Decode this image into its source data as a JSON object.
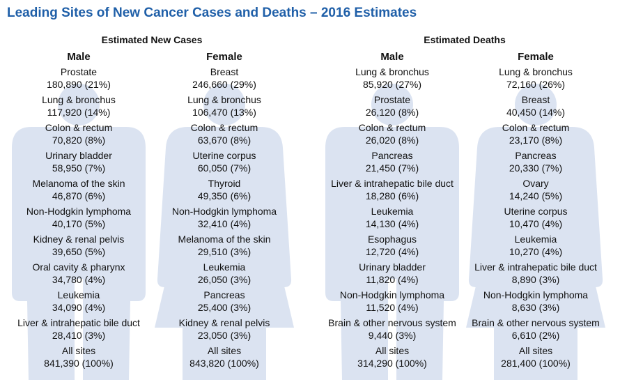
{
  "header": {
    "title": "Leading Sites of New Cancer Cases and Deaths – 2016 Estimates"
  },
  "sections": [
    {
      "title": "Estimated New Cases",
      "columns": [
        {
          "heading": "Male",
          "entries": [
            {
              "site": "Prostate",
              "stat": "180,890 (21%)"
            },
            {
              "site": "Lung & bronchus",
              "stat": "117,920 (14%)"
            },
            {
              "site": "Colon & rectum",
              "stat": "70,820 (8%)"
            },
            {
              "site": "Urinary bladder",
              "stat": "58,950 (7%)"
            },
            {
              "site": "Melanoma of the skin",
              "stat": "46,870 (6%)"
            },
            {
              "site": "Non-Hodgkin lymphoma",
              "stat": "40,170 (5%)"
            },
            {
              "site": "Kidney & renal pelvis",
              "stat": "39,650 (5%)"
            },
            {
              "site": "Oral cavity & pharynx",
              "stat": "34,780 (4%)"
            },
            {
              "site": "Leukemia",
              "stat": "34,090 (4%)"
            },
            {
              "site": "Liver & intrahepatic bile duct",
              "stat": "28,410 (3%)"
            },
            {
              "site": "All sites",
              "stat": "841,390 (100%)"
            }
          ]
        },
        {
          "heading": "Female",
          "entries": [
            {
              "site": "Breast",
              "stat": "246,660 (29%)"
            },
            {
              "site": "Lung & bronchus",
              "stat": "106,470 (13%)"
            },
            {
              "site": "Colon & rectum",
              "stat": "63,670 (8%)"
            },
            {
              "site": "Uterine corpus",
              "stat": "60,050 (7%)"
            },
            {
              "site": "Thyroid",
              "stat": "49,350 (6%)"
            },
            {
              "site": "Non-Hodgkin lymphoma",
              "stat": "32,410 (4%)"
            },
            {
              "site": "Melanoma of the skin",
              "stat": "29,510 (3%)"
            },
            {
              "site": "Leukemia",
              "stat": "26,050 (3%)"
            },
            {
              "site": "Pancreas",
              "stat": "25,400 (3%)"
            },
            {
              "site": "Kidney & renal pelvis",
              "stat": "23,050 (3%)"
            },
            {
              "site": "All sites",
              "stat": "843,820 (100%)"
            }
          ]
        }
      ]
    },
    {
      "title": "Estimated Deaths",
      "columns": [
        {
          "heading": "Male",
          "entries": [
            {
              "site": "Lung & bronchus",
              "stat": "85,920 (27%)"
            },
            {
              "site": "Prostate",
              "stat": "26,120 (8%)"
            },
            {
              "site": "Colon & rectum",
              "stat": "26,020 (8%)"
            },
            {
              "site": "Pancreas",
              "stat": "21,450 (7%)"
            },
            {
              "site": "Liver & intrahepatic bile duct",
              "stat": "18,280 (6%)"
            },
            {
              "site": "Leukemia",
              "stat": "14,130 (4%)"
            },
            {
              "site": "Esophagus",
              "stat": "12,720 (4%)"
            },
            {
              "site": "Urinary bladder",
              "stat": "11,820 (4%)"
            },
            {
              "site": "Non-Hodgkin lymphoma",
              "stat": "11,520 (4%)"
            },
            {
              "site": "Brain & other nervous system",
              "stat": "9,440 (3%)"
            },
            {
              "site": "All sites",
              "stat": "314,290 (100%)"
            }
          ]
        },
        {
          "heading": "Female",
          "entries": [
            {
              "site": "Lung & bronchus",
              "stat": "72,160 (26%)"
            },
            {
              "site": "Breast",
              "stat": "40,450 (14%)"
            },
            {
              "site": "Colon & rectum",
              "stat": "23,170 (8%)"
            },
            {
              "site": "Pancreas",
              "stat": "20,330 (7%)"
            },
            {
              "site": "Ovary",
              "stat": "14,240 (5%)"
            },
            {
              "site": "Uterine corpus",
              "stat": "10,470 (4%)"
            },
            {
              "site": "Leukemia",
              "stat": "10,270 (4%)"
            },
            {
              "site": "Liver & intrahepatic bile duct",
              "stat": "8,890 (3%)"
            },
            {
              "site": "Non-Hodgkin lymphoma",
              "stat": "8,630 (3%)"
            },
            {
              "site": "Brain & other nervous system",
              "stat": "6,610 (2%)"
            },
            {
              "site": "All sites",
              "stat": "281,400 (100%)"
            }
          ]
        }
      ]
    }
  ]
}
